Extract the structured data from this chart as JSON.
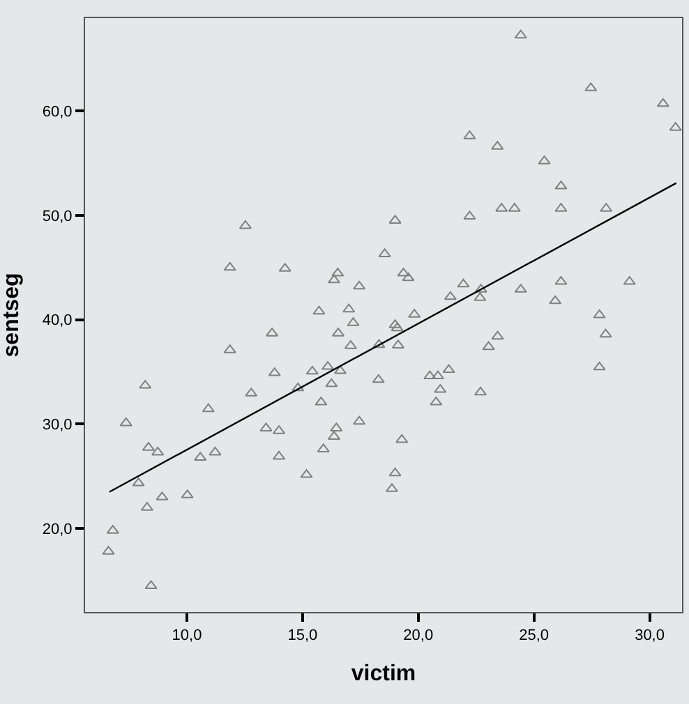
{
  "chart_data": {
    "type": "scatter",
    "xlabel": "victim",
    "ylabel": "sentseg",
    "xlim": [
      5.6,
      31.4
    ],
    "ylim": [
      12.0,
      68.9
    ],
    "xticks": [
      {
        "value": 10,
        "label": "10,0"
      },
      {
        "value": 15,
        "label": "15,0"
      },
      {
        "value": 20,
        "label": "20,0"
      },
      {
        "value": 25,
        "label": "25,0"
      },
      {
        "value": 30,
        "label": "30,0"
      }
    ],
    "yticks": [
      {
        "value": 20,
        "label": "20,0"
      },
      {
        "value": 30,
        "label": "30,0"
      },
      {
        "value": 40,
        "label": "40,0"
      },
      {
        "value": 50,
        "label": "50,0"
      },
      {
        "value": 60,
        "label": "60,0"
      }
    ],
    "grid": false,
    "legend": false,
    "marker": "triangle",
    "series": [
      {
        "color": "#808080",
        "x": [
          12.53,
          11.86,
          14.24,
          16.52,
          16.36,
          17.45,
          24.43,
          27.46,
          30.58,
          31.12,
          22.22,
          23.42,
          25.45,
          26.17,
          23.6,
          24.16,
          26.17,
          28.12,
          22.22,
          19.0,
          18.55,
          19.36,
          19.57,
          21.95,
          21.39,
          22.71,
          22.67,
          24.43,
          26.17,
          25.92,
          29.13,
          15.71,
          17.0,
          17.19,
          16.54,
          17.08,
          13.68,
          11.86,
          13.79,
          15.42,
          16.09,
          16.63,
          16.25,
          14.8,
          15.8,
          12.78,
          8.2,
          10.93,
          7.37,
          17.45,
          13.42,
          13.98,
          16.46,
          16.36,
          15.9,
          8.34,
          8.74,
          10.58,
          11.22,
          13.98,
          15.17,
          7.91,
          8.28,
          8.93,
          10.02,
          6.8,
          6.61,
          8.45,
          18.3,
          19.13,
          19.0,
          19.09,
          19.83,
          27.83,
          28.1,
          27.83,
          18.28,
          20.5,
          20.85,
          21.32,
          20.95,
          20.77,
          22.69,
          23.04,
          23.43,
          19.29,
          19.0,
          18.86
        ],
        "values": [
          49.0,
          45.0,
          44.9,
          44.45,
          43.8,
          43.2,
          67.25,
          62.2,
          60.7,
          58.4,
          57.6,
          56.6,
          55.2,
          52.8,
          50.65,
          50.65,
          50.65,
          50.65,
          49.9,
          49.5,
          46.3,
          44.45,
          44.0,
          43.4,
          42.2,
          42.9,
          42.1,
          42.9,
          43.65,
          41.8,
          43.65,
          40.8,
          41.0,
          39.7,
          38.7,
          37.5,
          38.7,
          37.1,
          34.9,
          35.05,
          35.5,
          35.1,
          33.85,
          33.45,
          32.1,
          32.95,
          33.7,
          31.45,
          30.1,
          30.25,
          29.6,
          29.35,
          29.6,
          28.8,
          27.6,
          27.75,
          27.3,
          26.8,
          27.3,
          26.9,
          25.15,
          24.35,
          22.0,
          23.0,
          23.2,
          19.8,
          17.8,
          14.5,
          37.6,
          37.55,
          39.5,
          39.2,
          40.5,
          40.45,
          38.6,
          35.45,
          34.25,
          34.6,
          34.6,
          35.2,
          33.3,
          32.1,
          33.05,
          37.4,
          38.4,
          28.5,
          25.3,
          23.8
        ]
      },
      {
        "type": "line",
        "color": "#000000",
        "marker": "none",
        "x": [
          6.65,
          31.15
        ],
        "values": [
          23.5,
          53.1
        ]
      }
    ]
  }
}
